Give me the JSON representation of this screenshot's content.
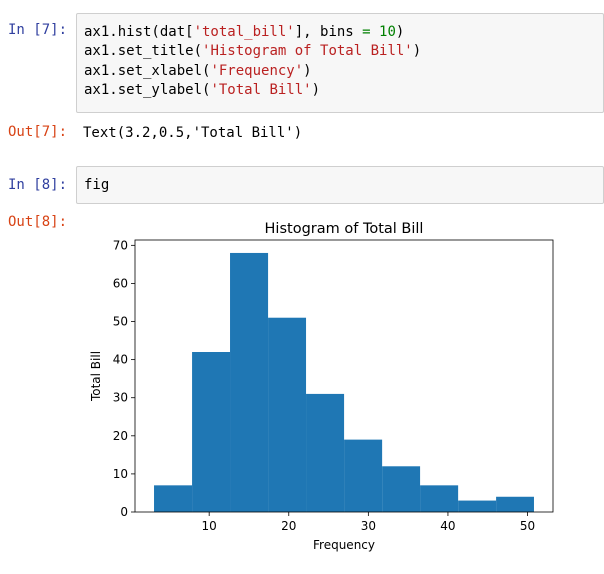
{
  "cells": [
    {
      "in_prompt": "In [7]:",
      "code_lines": [
        [
          {
            "t": "ax1.hist(dat[",
            "c": ""
          },
          {
            "t": "'total_bill'",
            "c": "str"
          },
          {
            "t": "], bins ",
            "c": ""
          },
          {
            "t": "=",
            "c": "num"
          },
          {
            "t": " ",
            "c": ""
          },
          {
            "t": "10",
            "c": "num"
          },
          {
            "t": ")",
            "c": ""
          }
        ],
        [
          {
            "t": "ax1.set_title(",
            "c": ""
          },
          {
            "t": "'Histogram of Total Bill'",
            "c": "str"
          },
          {
            "t": ")",
            "c": ""
          }
        ],
        [
          {
            "t": "ax1.set_xlabel(",
            "c": ""
          },
          {
            "t": "'Frequency'",
            "c": "str"
          },
          {
            "t": ")",
            "c": ""
          }
        ],
        [
          {
            "t": "ax1.set_ylabel(",
            "c": ""
          },
          {
            "t": "'Total Bill'",
            "c": "str"
          },
          {
            "t": ")",
            "c": ""
          }
        ]
      ],
      "out_prompt": "Out[7]:",
      "output_text": "Text(3.2,0.5,'Total Bill')"
    },
    {
      "in_prompt": "In [8]:",
      "code_lines": [
        [
          {
            "t": "fig",
            "c": ""
          }
        ]
      ],
      "out_prompt": "Out[8]:"
    }
  ],
  "chart_data": {
    "type": "bar",
    "title": "Histogram of Total Bill",
    "xlabel": "Frequency",
    "ylabel": "Total Bill",
    "bin_edges": [
      3.07,
      7.85,
      12.62,
      17.4,
      22.17,
      26.95,
      31.73,
      36.5,
      41.28,
      46.05,
      50.81
    ],
    "values": [
      7,
      42,
      68,
      51,
      31,
      19,
      12,
      7,
      3,
      4
    ],
    "xlim": [
      0.68,
      53.2
    ],
    "ylim": [
      0,
      71.4
    ],
    "xticks": [
      10,
      20,
      30,
      40,
      50
    ],
    "yticks": [
      0,
      10,
      20,
      30,
      40,
      50,
      60,
      70
    ],
    "bar_color": "#1f77b4",
    "grid": false
  },
  "colors": {
    "in_prompt": "#303f9f",
    "out_prompt": "#d84315",
    "string": "#ba2121",
    "number": "#008000",
    "input_bg": "#f7f7f7"
  }
}
